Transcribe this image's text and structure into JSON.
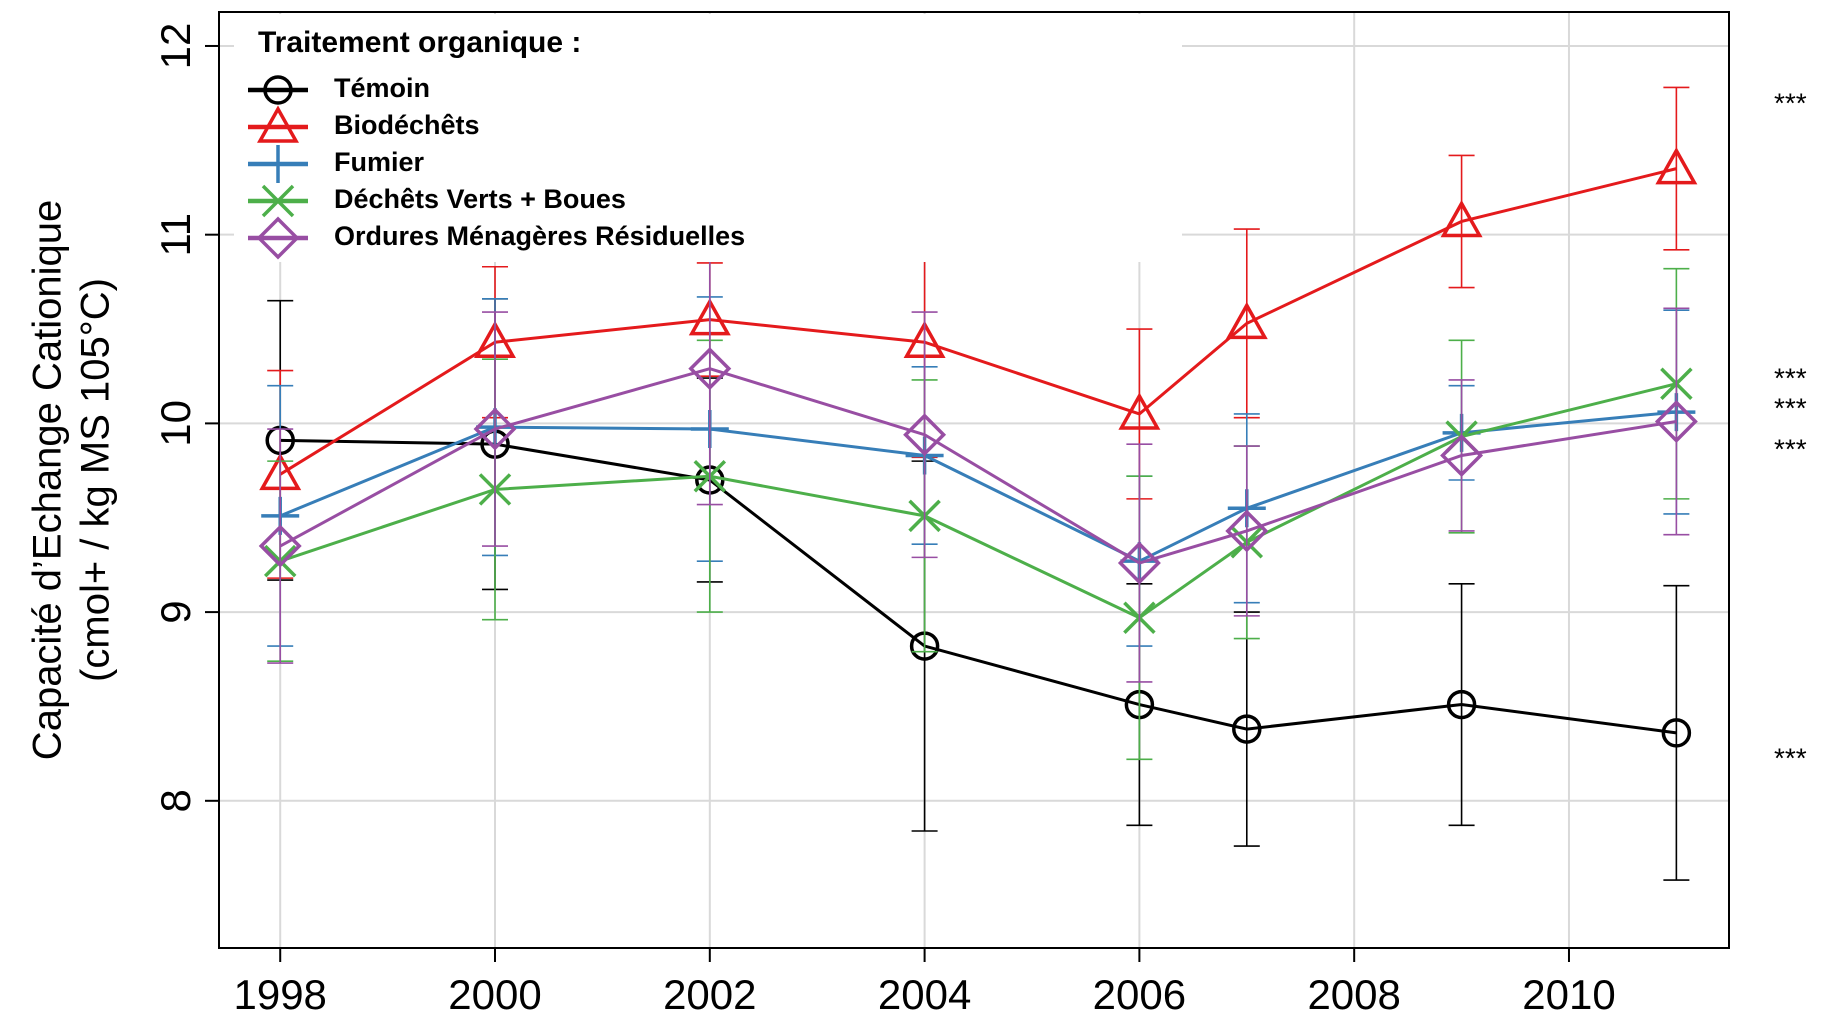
{
  "chart_data": {
    "type": "line",
    "ylabel": [
      "Capacité d’Echange Cationique",
      "(cmol+ / kg MS 105°C)"
    ],
    "legend_title": "Traitement organique :",
    "legend_position": "upper left",
    "grid": true,
    "x": [
      1998,
      2000,
      2002,
      2004,
      2006,
      2007,
      2009,
      2011
    ],
    "xlim": [
      1997.43,
      2011.49
    ],
    "xticks": [
      1998,
      2000,
      2002,
      2004,
      2006,
      2008,
      2010
    ],
    "ylim": [
      7.22,
      12.18
    ],
    "yticks": [
      8,
      9,
      10,
      11,
      12
    ],
    "series": [
      {
        "name": "Témoin",
        "color": "#000000",
        "marker": "circle",
        "significance": "***",
        "values": [
          9.91,
          9.89,
          9.7,
          8.82,
          8.51,
          8.38,
          8.51,
          8.36
        ],
        "errors": [
          0.74,
          0.77,
          0.54,
          0.98,
          0.64,
          0.62,
          0.64,
          0.78
        ]
      },
      {
        "name": "Biodéchêts",
        "color": "#e41a1c",
        "marker": "triangle",
        "significance": "***",
        "values": [
          9.73,
          10.43,
          10.55,
          10.43,
          10.05,
          10.53,
          11.07,
          11.35
        ],
        "errors": [
          0.55,
          0.4,
          0.3,
          0.61,
          0.45,
          0.5,
          0.35,
          0.43
        ]
      },
      {
        "name": "Fumier",
        "color": "#377eb8",
        "marker": "plus",
        "significance": "***",
        "values": [
          9.51,
          9.98,
          9.97,
          9.83,
          9.27,
          9.55,
          9.95,
          10.06
        ],
        "errors": [
          0.69,
          0.68,
          0.7,
          0.47,
          0.45,
          0.5,
          0.25,
          0.54
        ]
      },
      {
        "name": "Déchêts Verts + Boues",
        "color": "#4daf4a",
        "marker": "x",
        "significance": "***",
        "values": [
          9.27,
          9.65,
          9.72,
          9.51,
          8.97,
          9.37,
          9.93,
          10.21
        ],
        "errors": [
          0.53,
          0.69,
          0.72,
          0.72,
          0.75,
          0.51,
          0.51,
          0.61
        ]
      },
      {
        "name": "Ordures Ménagères Résiduelles",
        "color": "#984ea3",
        "marker": "diamond",
        "significance": "***",
        "values": [
          9.35,
          9.97,
          10.29,
          9.94,
          9.26,
          9.43,
          9.83,
          10.01
        ],
        "errors": [
          0.62,
          0.62,
          0.72,
          0.65,
          0.63,
          0.45,
          0.4,
          0.6
        ]
      }
    ]
  }
}
